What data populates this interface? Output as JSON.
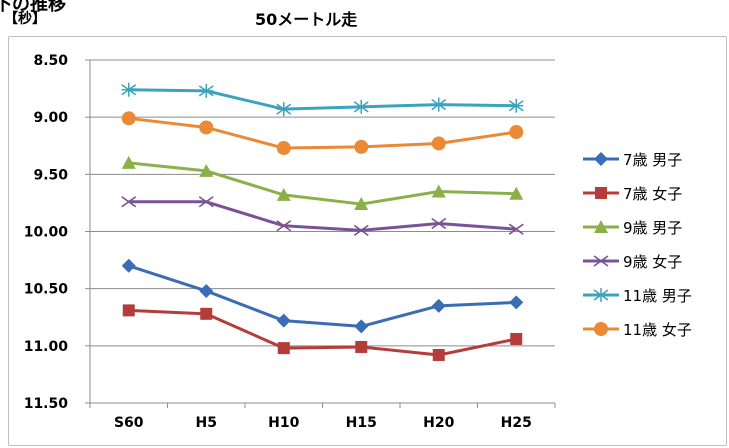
{
  "header": {
    "heading": "下の推移",
    "unit": "【秒】",
    "title": "50メートル走"
  },
  "chart_data": {
    "type": "line",
    "title": "50メートル走",
    "ylabel": "【秒】",
    "xlabel": "",
    "categories": [
      "S60",
      "H5",
      "H10",
      "H15",
      "H20",
      "H25"
    ],
    "ylim": [
      8.5,
      11.5
    ],
    "y_inverted": true,
    "y_ticks": [
      "8.50",
      "9.00",
      "9.50",
      "10.00",
      "10.50",
      "11.00",
      "11.50"
    ],
    "grid": true,
    "legend_position": "right",
    "series": [
      {
        "name": "7歳 男子",
        "values": [
          10.3,
          10.52,
          10.78,
          10.83,
          10.65,
          10.62
        ],
        "color": "#3a6db5",
        "marker": "diamond"
      },
      {
        "name": "7歳 女子",
        "values": [
          10.69,
          10.72,
          11.02,
          11.01,
          11.08,
          10.94
        ],
        "color": "#b43d3a",
        "marker": "square"
      },
      {
        "name": "9歳 男子",
        "values": [
          9.4,
          9.47,
          9.68,
          9.76,
          9.65,
          9.67
        ],
        "color": "#8bb04a",
        "marker": "triangle"
      },
      {
        "name": "9歳 女子",
        "values": [
          9.74,
          9.74,
          9.95,
          9.99,
          9.93,
          9.98
        ],
        "color": "#7a5296",
        "marker": "x"
      },
      {
        "name": "11歳 男子",
        "values": [
          8.76,
          8.77,
          8.93,
          8.91,
          8.89,
          8.9
        ],
        "color": "#3ba3bd",
        "marker": "star"
      },
      {
        "name": "11歳 女子",
        "values": [
          9.01,
          9.09,
          9.27,
          9.26,
          9.23,
          9.13
        ],
        "color": "#ea8936",
        "marker": "circle"
      }
    ]
  }
}
